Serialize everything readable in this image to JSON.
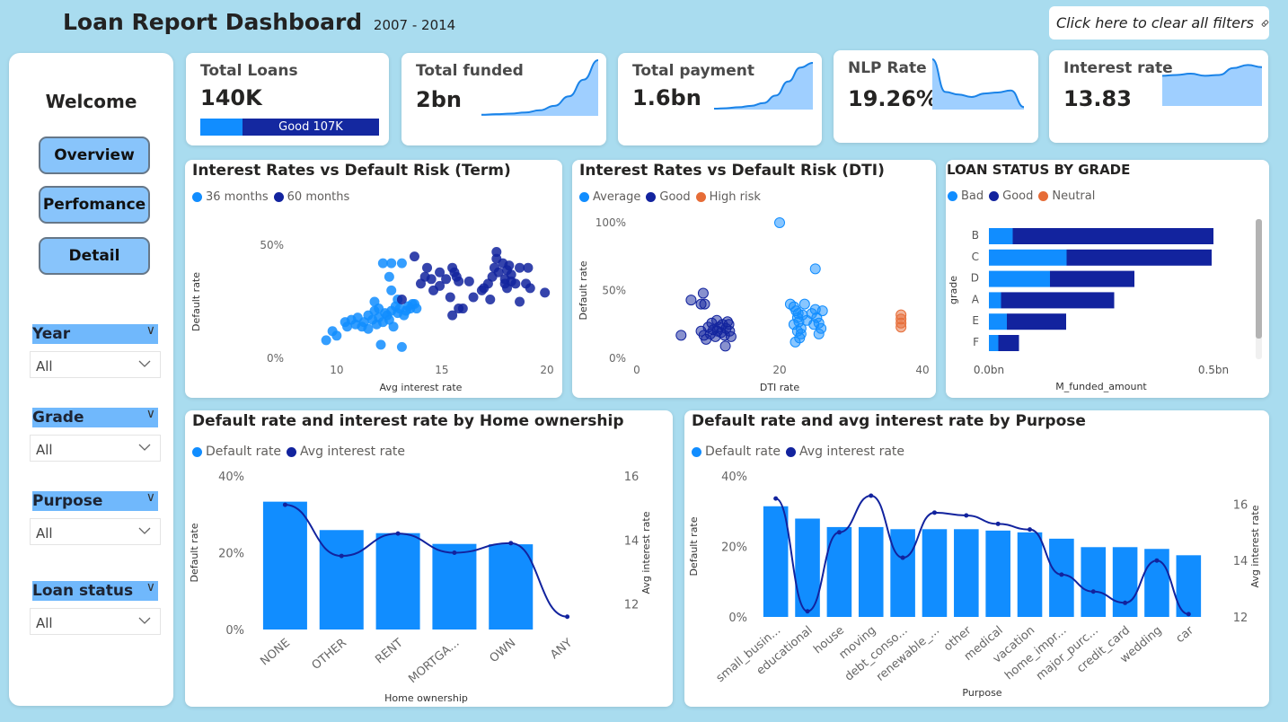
{
  "header": {
    "title": "Loan Report Dashboard",
    "years": "2007 - 2014",
    "clear_filters_label": "Click here to clear all filters"
  },
  "sidebar": {
    "welcome": "Welcome",
    "nav": [
      {
        "label": "Overview"
      },
      {
        "label": "Perfomance"
      },
      {
        "label": "Detail"
      }
    ],
    "slicers": [
      {
        "label": "Year",
        "value": "All"
      },
      {
        "label": "Grade",
        "value": "All"
      },
      {
        "label": "Purpose",
        "value": "All"
      },
      {
        "label": "Loan status",
        "value": "All"
      }
    ]
  },
  "kpis": {
    "total_loans": {
      "label": "Total Loans",
      "value": "140K",
      "bar_label": "Good 107K",
      "good_share": 0.764
    },
    "total_funded": {
      "label": "Total funded",
      "value": "2bn",
      "trend": [
        0.02,
        0.03,
        0.04,
        0.06,
        0.1,
        0.18,
        0.35,
        0.65,
        1.0
      ]
    },
    "total_payment": {
      "label": "Total payment",
      "value": "1.6bn",
      "trend": [
        0.02,
        0.03,
        0.05,
        0.08,
        0.14,
        0.3,
        0.6,
        0.9,
        1.0
      ]
    },
    "nlp_rate": {
      "label": "NLP Rate",
      "value": "19.26%",
      "trend": [
        1.0,
        0.35,
        0.3,
        0.25,
        0.32,
        0.34,
        0.38,
        0.05
      ]
    },
    "interest_rate": {
      "label": "Interest rate",
      "value": "13.83",
      "trend": [
        0.7,
        0.72,
        0.75,
        0.7,
        0.72,
        0.88,
        0.95,
        0.9
      ]
    }
  },
  "colors": {
    "light": "#118dff",
    "dark": "#12239e",
    "orange": "#e66c37",
    "bg": "#a9dcef"
  },
  "chart_data": [
    {
      "id": "term_scatter",
      "type": "scatter",
      "title": "Interest Rates vs Default Risk (Term)",
      "xlabel": "Avg interest rate",
      "ylabel": "Default rate",
      "xlim": [
        8,
        20
      ],
      "ylim": [
        0,
        50
      ],
      "xticks": [
        "10",
        "15",
        "20"
      ],
      "yticks": [
        "0%",
        "50%"
      ],
      "series": [
        {
          "name": "36 months",
          "points": [
            [
              9.5,
              8
            ],
            [
              9.8,
              12
            ],
            [
              10,
              10
            ],
            [
              10.4,
              16
            ],
            [
              10.5,
              14
            ],
            [
              10.7,
              17
            ],
            [
              10.9,
              15
            ],
            [
              11,
              18
            ],
            [
              11.2,
              14
            ],
            [
              11.3,
              16
            ],
            [
              11.5,
              13
            ],
            [
              11.5,
              19
            ],
            [
              11.7,
              17
            ],
            [
              11.8,
              21
            ],
            [
              11.9,
              15
            ],
            [
              12,
              18
            ],
            [
              12,
              22
            ],
            [
              12.1,
              6
            ],
            [
              12.2,
              16
            ],
            [
              12.3,
              20
            ],
            [
              12.4,
              19
            ],
            [
              12.5,
              17
            ],
            [
              12.6,
              21
            ],
            [
              12.7,
              14
            ],
            [
              12.8,
              23
            ],
            [
              12.9,
              20
            ],
            [
              13,
              22
            ],
            [
              13.1,
              5
            ],
            [
              13.2,
              19
            ],
            [
              13.3,
              21
            ],
            [
              13.4,
              23
            ],
            [
              13.5,
              22
            ],
            [
              13.6,
              24
            ],
            [
              13.7,
              24
            ],
            [
              13.8,
              22
            ],
            [
              12.2,
              42
            ],
            [
              12.6,
              42
            ],
            [
              13.1,
              42
            ],
            [
              12.5,
              36
            ],
            [
              12.6,
              30
            ],
            [
              11.8,
              25
            ],
            [
              12.9,
              26
            ]
          ]
        },
        {
          "name": "60 months",
          "points": [
            [
              13.1,
              26
            ],
            [
              13.7,
              45
            ],
            [
              14,
              33
            ],
            [
              14.2,
              36
            ],
            [
              14.3,
              40
            ],
            [
              14.5,
              35
            ],
            [
              14.6,
              30
            ],
            [
              14.9,
              38
            ],
            [
              14.9,
              32
            ],
            [
              15.2,
              35
            ],
            [
              15.4,
              27
            ],
            [
              15.5,
              40
            ],
            [
              15.6,
              38
            ],
            [
              15.7,
              36
            ],
            [
              15.8,
              34
            ],
            [
              15.8,
              22
            ],
            [
              15.5,
              19
            ],
            [
              16.0,
              22
            ],
            [
              16.3,
              34
            ],
            [
              16.5,
              27
            ],
            [
              16.9,
              30
            ],
            [
              17.0,
              31
            ],
            [
              17.2,
              33
            ],
            [
              17.3,
              26
            ],
            [
              17.4,
              36
            ],
            [
              17.5,
              40
            ],
            [
              17.6,
              44
            ],
            [
              17.6,
              47
            ],
            [
              17.7,
              38
            ],
            [
              17.9,
              42
            ],
            [
              18,
              35
            ],
            [
              18,
              33
            ],
            [
              18.1,
              39
            ],
            [
              18.1,
              31
            ],
            [
              18.3,
              37
            ],
            [
              18.2,
              41
            ],
            [
              18.3,
              34
            ],
            [
              18.5,
              33
            ],
            [
              18.7,
              40
            ],
            [
              18.7,
              25
            ],
            [
              19.1,
              40
            ],
            [
              19.0,
              33
            ],
            [
              19.2,
              31
            ],
            [
              19.9,
              29
            ]
          ]
        }
      ]
    },
    {
      "id": "dti_scatter",
      "type": "scatter",
      "title": "Interest Rates vs Default Risk (DTI)",
      "xlabel": "DTI rate",
      "ylabel": "Default rate",
      "xlim": [
        0,
        40
      ],
      "ylim": [
        0,
        100
      ],
      "xticks": [
        "0",
        "20",
        "40"
      ],
      "yticks": [
        "0%",
        "50%",
        "100%"
      ],
      "series": [
        {
          "name": "Average",
          "points": [
            [
              20,
              100
            ],
            [
              25,
              66
            ],
            [
              21.5,
              40
            ],
            [
              22,
              38
            ],
            [
              22.3,
              35
            ],
            [
              22.5,
              30
            ],
            [
              22.7,
              27
            ],
            [
              22,
              25
            ],
            [
              22.5,
              20
            ],
            [
              23,
              22
            ],
            [
              23.2,
              32
            ],
            [
              23.5,
              40
            ],
            [
              22.8,
              15
            ],
            [
              22.2,
              12
            ],
            [
              23.8,
              28
            ],
            [
              24.5,
              33
            ],
            [
              25,
              36
            ],
            [
              25.2,
              30
            ],
            [
              25.5,
              26
            ],
            [
              25.8,
              22
            ],
            [
              25.5,
              18
            ],
            [
              26,
              35
            ],
            [
              24.8,
              25
            ],
            [
              23,
              18
            ],
            [
              22.6,
              33
            ]
          ]
        },
        {
          "name": "Good",
          "points": [
            [
              6.2,
              17
            ],
            [
              7.6,
              43
            ],
            [
              9,
              40
            ],
            [
              9.3,
              48
            ],
            [
              9.5,
              40
            ],
            [
              9.0,
              20
            ],
            [
              9.4,
              17
            ],
            [
              9.7,
              14
            ],
            [
              10,
              23
            ],
            [
              10.3,
              18
            ],
            [
              10.7,
              21
            ],
            [
              11,
              16
            ],
            [
              11.2,
              28
            ],
            [
              11.5,
              23
            ],
            [
              11.8,
              19
            ],
            [
              12,
              25
            ],
            [
              12.3,
              17
            ],
            [
              12.5,
              22
            ],
            [
              12.7,
              27
            ],
            [
              13,
              20
            ],
            [
              13.2,
              16
            ],
            [
              12.9,
              25
            ],
            [
              12.4,
              9
            ],
            [
              10.5,
              26
            ],
            [
              11.3,
              20
            ]
          ]
        },
        {
          "name": "High risk",
          "points": [
            [
              37,
              32
            ],
            [
              37,
              29
            ],
            [
              37,
              26
            ],
            [
              37,
              23
            ]
          ]
        }
      ]
    },
    {
      "id": "grade_bar",
      "type": "bar",
      "orientation": "horizontal-stacked",
      "title": "LOAN STATUS BY GRADE",
      "xlabel": "M_funded_amount",
      "ylabel": "grade",
      "xlim": [
        0,
        0.5
      ],
      "xticks": [
        "0.0bn",
        "0.5bn"
      ],
      "categories": [
        "B",
        "C",
        "D",
        "A",
        "E",
        "F"
      ],
      "series": [
        {
          "name": "Bad",
          "values": [
            0.053,
            0.173,
            0.136,
            0.027,
            0.04,
            0.021
          ]
        },
        {
          "name": "Good",
          "values": [
            0.447,
            0.323,
            0.188,
            0.252,
            0.132,
            0.046
          ]
        },
        {
          "name": "Neutral",
          "values": [
            0,
            0,
            0,
            0,
            0,
            0
          ]
        }
      ]
    },
    {
      "id": "home_combo",
      "type": "bar",
      "combo": "bar+line",
      "title": "Default rate and interest rate by Home ownership",
      "xlabel": "Home ownership",
      "ylabel": "Default rate",
      "y2label": "Avg interest rate",
      "ylim": [
        0,
        40
      ],
      "y2lim": [
        11.2,
        16
      ],
      "yticks": [
        "0%",
        "20%",
        "40%"
      ],
      "y2ticks": [
        "12",
        "14",
        "16"
      ],
      "categories": [
        "NONE",
        "OTHER",
        "RENT",
        "MORTGA...",
        "OWN",
        "ANY"
      ],
      "series": [
        {
          "name": "Default rate",
          "values": [
            33.3,
            25.9,
            25.1,
            22.3,
            22.2,
            0
          ]
        },
        {
          "name": "Avg interest rate",
          "values": [
            15.1,
            13.5,
            14.2,
            13.6,
            13.9,
            11.6
          ]
        }
      ]
    },
    {
      "id": "purpose_combo",
      "type": "bar",
      "combo": "bar+line",
      "title": "Default rate and avg interest rate by Purpose",
      "xlabel": "Purpose",
      "ylabel": "Default rate",
      "y2label": "Avg interest rate",
      "ylim": [
        0,
        40
      ],
      "y2lim": [
        12,
        17
      ],
      "yticks": [
        "0%",
        "20%",
        "40%"
      ],
      "y2ticks": [
        "12",
        "14",
        "16"
      ],
      "categories": [
        "small_busin...",
        "educational",
        "house",
        "moving",
        "debt_conso...",
        "renewable_...",
        "other",
        "medical",
        "vacation",
        "home_impr...",
        "major_purc...",
        "credit_card",
        "wedding",
        "car"
      ],
      "series": [
        {
          "name": "Default rate",
          "values": [
            31.4,
            27.9,
            25.5,
            25.5,
            24.9,
            24.9,
            24.9,
            24.5,
            24.0,
            22.2,
            19.8,
            19.8,
            19.3,
            17.5
          ]
        },
        {
          "name": "Avg interest rate",
          "values": [
            16.2,
            12.2,
            15.0,
            16.3,
            14.1,
            15.7,
            15.6,
            15.3,
            15.1,
            13.5,
            12.9,
            12.5,
            14.0,
            12.1
          ]
        }
      ]
    }
  ]
}
